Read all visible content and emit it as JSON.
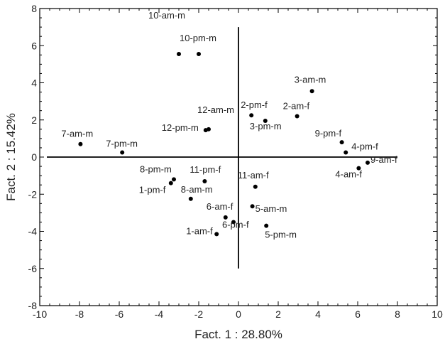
{
  "chart_data": {
    "type": "scatter",
    "title": "",
    "xlabel": "Fact. 1 : 28.80%",
    "ylabel": "Fact. 2 : 15.42%",
    "xlim": [
      -10,
      10
    ],
    "ylim": [
      -8,
      8
    ],
    "x_major_ticks": [
      -10,
      -8,
      -6,
      -4,
      -2,
      0,
      2,
      4,
      6,
      8,
      10
    ],
    "y_major_ticks": [
      -8,
      -6,
      -4,
      -2,
      0,
      2,
      4,
      6,
      8
    ],
    "x_tick_labels": [
      "-10",
      "-8",
      "-6",
      "-4",
      "-2",
      "0",
      "2",
      "4",
      "6",
      "8",
      "10"
    ],
    "y_tick_labels": [
      "-8",
      "-6",
      "-4",
      "-2",
      "0",
      "2",
      "4",
      "6",
      "8"
    ],
    "grid": false,
    "reference_lines": {
      "horizontal_at_y": 0,
      "vertical_at_x": 0
    },
    "colors": {
      "points": "#000000",
      "axes": "#000000",
      "text": "#222222"
    },
    "points": [
      {
        "label": "10-am-m",
        "x": -3.0,
        "y": 5.55
      },
      {
        "label": "10-pm-m",
        "x": -2.0,
        "y": 5.55
      },
      {
        "label": "3-am-m",
        "x": 3.7,
        "y": 3.55
      },
      {
        "label": "2-pm-f",
        "x": 0.65,
        "y": 2.25
      },
      {
        "label": "2-am-f",
        "x": 2.95,
        "y": 2.2
      },
      {
        "label": "3-pm-m",
        "x": 1.35,
        "y": 1.95
      },
      {
        "label": "12-am-m",
        "x": -1.5,
        "y": 1.5
      },
      {
        "label": "12-pm-m",
        "x": -1.65,
        "y": 1.45
      },
      {
        "label": "9-pm-f",
        "x": 5.2,
        "y": 0.8
      },
      {
        "label": "7-am-m",
        "x": -7.95,
        "y": 0.7
      },
      {
        "label": "4-pm-f",
        "x": 5.4,
        "y": 0.25
      },
      {
        "label": "7-pm-m",
        "x": -5.85,
        "y": 0.25
      },
      {
        "label": "9-am-f",
        "x": 6.5,
        "y": -0.3
      },
      {
        "label": "4-am-f",
        "x": 6.05,
        "y": -0.6
      },
      {
        "label": "8-pm-m",
        "x": -3.25,
        "y": -1.2
      },
      {
        "label": "11-pm-f",
        "x": -1.7,
        "y": -1.3
      },
      {
        "label": "1-pm-f",
        "x": -3.4,
        "y": -1.4
      },
      {
        "label": "11-am-f",
        "x": 0.85,
        "y": -1.6
      },
      {
        "label": "8-am-m",
        "x": -2.4,
        "y": -2.25
      },
      {
        "label": "5-am-m",
        "x": 0.7,
        "y": -2.65
      },
      {
        "label": "6-am-f",
        "x": -0.65,
        "y": -3.25
      },
      {
        "label": "6-pm-f",
        "x": -0.25,
        "y": -3.5
      },
      {
        "label": "5-pm-m",
        "x": 1.4,
        "y": -3.7
      },
      {
        "label": "1-am-f",
        "x": -1.1,
        "y": -4.15
      }
    ]
  }
}
